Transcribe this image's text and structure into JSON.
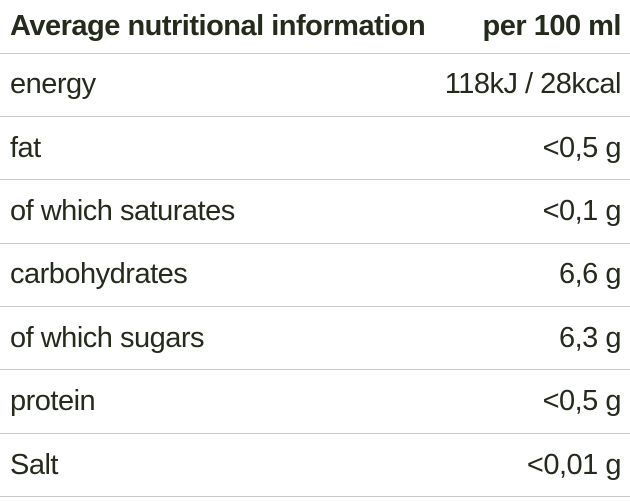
{
  "table": {
    "title": "Average nutritional information",
    "header": {
      "label": "Average nutritional information",
      "unit": "per 100 ml"
    },
    "rows": [
      {
        "name": "energy",
        "value": "118kJ / 28kcal"
      },
      {
        "name": "fat",
        "value": "<0,5 g"
      },
      {
        "name": "of which saturates",
        "value": "<0,1 g"
      },
      {
        "name": "carbohydrates",
        "value": "6,6 g"
      },
      {
        "name": "of which sugars",
        "value": "6,3 g"
      },
      {
        "name": "protein",
        "value": "<0,5 g"
      },
      {
        "name": "Salt",
        "value": "<0,01 g"
      }
    ],
    "colors": {
      "text": "#242b1d",
      "divider": "#c9c9c9",
      "background": "#ffffff"
    }
  }
}
